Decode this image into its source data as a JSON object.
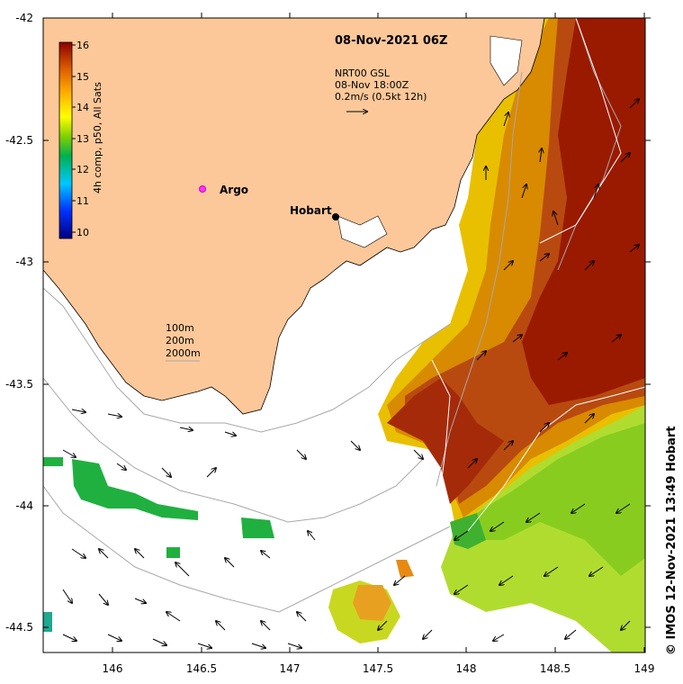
{
  "title": "08-Nov-2021 06Z",
  "current_info": {
    "line1": "NRT00 GSL",
    "line2": "08-Nov 18:00Z",
    "line3": "0.2m/s (0.5kt 12h)"
  },
  "colorbar": {
    "label": "4h comp, p50, All Sats",
    "ticks": [
      "10",
      "11",
      "12",
      "13",
      "14",
      "15",
      "16"
    ]
  },
  "depth_legend": [
    "100m",
    "200m",
    "2000m"
  ],
  "places": {
    "hobart": "Hobart",
    "argo": "Argo"
  },
  "credit": "© IMOS 12-Nov-2021 13:49 Hobart",
  "x_ticks": [
    "146",
    "146.5",
    "147",
    "147.5",
    "148",
    "148.5",
    "149"
  ],
  "y_ticks": [
    "-42",
    "-42.5",
    "-43",
    "-43.5",
    "-44",
    "-44.5"
  ],
  "colors": {
    "land": "#fcc899",
    "ocean": "#ffffff",
    "hobart_marker": "#000000",
    "argo_marker": "#ff33ff"
  }
}
